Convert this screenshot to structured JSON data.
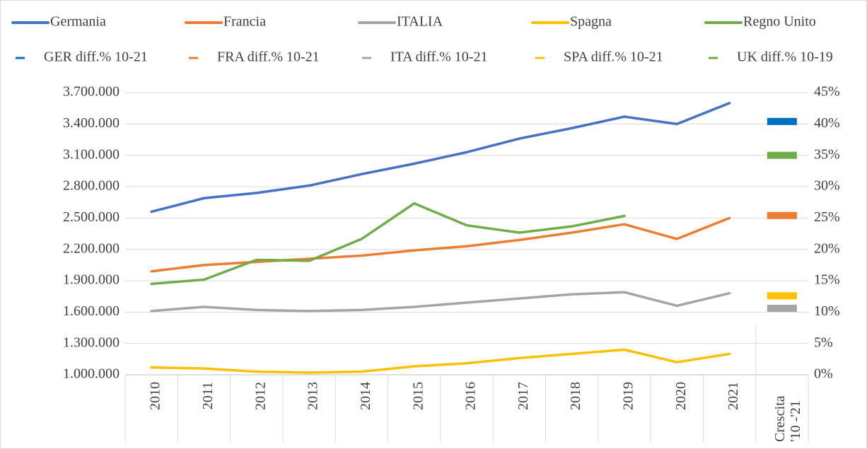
{
  "chart_data": {
    "type": "line",
    "categories": [
      "2010",
      "2011",
      "2012",
      "2013",
      "2014",
      "2015",
      "2016",
      "2017",
      "2018",
      "2019",
      "2020",
      "2021",
      "Crescita '10 -'21"
    ],
    "series": [
      {
        "name": "Germania",
        "color": "#4472c4",
        "values": [
          2560000,
          2690000,
          2740000,
          2810000,
          2920000,
          3020000,
          3130000,
          3260000,
          3360000,
          3470000,
          3400000,
          3600000,
          null
        ]
      },
      {
        "name": "Francia",
        "color": "#ed7d31",
        "values": [
          1990000,
          2050000,
          2080000,
          2110000,
          2140000,
          2190000,
          2230000,
          2290000,
          2360000,
          2440000,
          2300000,
          2500000,
          null
        ]
      },
      {
        "name": "ITALIA",
        "color": "#a5a5a5",
        "values": [
          1610000,
          1650000,
          1620000,
          1610000,
          1620000,
          1650000,
          1690000,
          1730000,
          1770000,
          1790000,
          1660000,
          1780000,
          null
        ]
      },
      {
        "name": "Spagna",
        "color": "#ffc000",
        "values": [
          1070000,
          1060000,
          1030000,
          1020000,
          1030000,
          1080000,
          1110000,
          1160000,
          1200000,
          1240000,
          1120000,
          1200000,
          null
        ]
      },
      {
        "name": "Regno Unito",
        "color": "#70ad47",
        "values": [
          1870000,
          1910000,
          2100000,
          2090000,
          2300000,
          2640000,
          2430000,
          2360000,
          2420000,
          2520000,
          null,
          null,
          null
        ]
      },
      {
        "name": "GER diff.% 10-21",
        "color": "#0070c0",
        "axis": "y2",
        "marker": "dash",
        "values": [
          null,
          null,
          null,
          null,
          null,
          null,
          null,
          null,
          null,
          null,
          null,
          null,
          40.4
        ]
      },
      {
        "name": "FRA diff.% 10-21",
        "color": "#ed7d31",
        "axis": "y2",
        "marker": "dash",
        "values": [
          null,
          null,
          null,
          null,
          null,
          null,
          null,
          null,
          null,
          null,
          null,
          null,
          25.4
        ]
      },
      {
        "name": "ITA diff.% 10-21",
        "color": "#a5a5a5",
        "axis": "y2",
        "marker": "dash",
        "values": [
          null,
          null,
          null,
          null,
          null,
          null,
          null,
          null,
          null,
          null,
          null,
          null,
          10.6
        ]
      },
      {
        "name": "SPA diff.% 10-21",
        "color": "#ffc000",
        "axis": "y2",
        "marker": "dash",
        "values": [
          null,
          null,
          null,
          null,
          null,
          null,
          null,
          null,
          null,
          null,
          null,
          null,
          12.6
        ]
      },
      {
        "name": "UK diff.% 10-19",
        "color": "#70ad47",
        "axis": "y2",
        "marker": "dash",
        "values": [
          null,
          null,
          null,
          null,
          null,
          null,
          null,
          null,
          null,
          null,
          null,
          null,
          35.0
        ]
      }
    ],
    "ylim": [
      1000000,
      3700000
    ],
    "yticks": [
      {
        "value": 1000000,
        "label": "1.000.000"
      },
      {
        "value": 1300000,
        "label": "1.300.000"
      },
      {
        "value": 1600000,
        "label": "1.600.000"
      },
      {
        "value": 1900000,
        "label": "1.900.000"
      },
      {
        "value": 2200000,
        "label": "2.200.000"
      },
      {
        "value": 2500000,
        "label": "2.500.000"
      },
      {
        "value": 2800000,
        "label": "2.800.000"
      },
      {
        "value": 3100000,
        "label": "3.100.000"
      },
      {
        "value": 3400000,
        "label": "3.400.000"
      },
      {
        "value": 3700000,
        "label": "3.700.000"
      }
    ],
    "y2lim": [
      0,
      45
    ],
    "y2ticks": [
      {
        "value": 0,
        "label": "0%"
      },
      {
        "value": 5,
        "label": "5%"
      },
      {
        "value": 10,
        "label": "10%"
      },
      {
        "value": 15,
        "label": "15%"
      },
      {
        "value": 20,
        "label": "20%"
      },
      {
        "value": 25,
        "label": "25%"
      },
      {
        "value": 30,
        "label": "30%"
      },
      {
        "value": 35,
        "label": "35%"
      },
      {
        "value": 40,
        "label": "40%"
      },
      {
        "value": 45,
        "label": "45%"
      }
    ],
    "grid": true,
    "legend": "top"
  }
}
